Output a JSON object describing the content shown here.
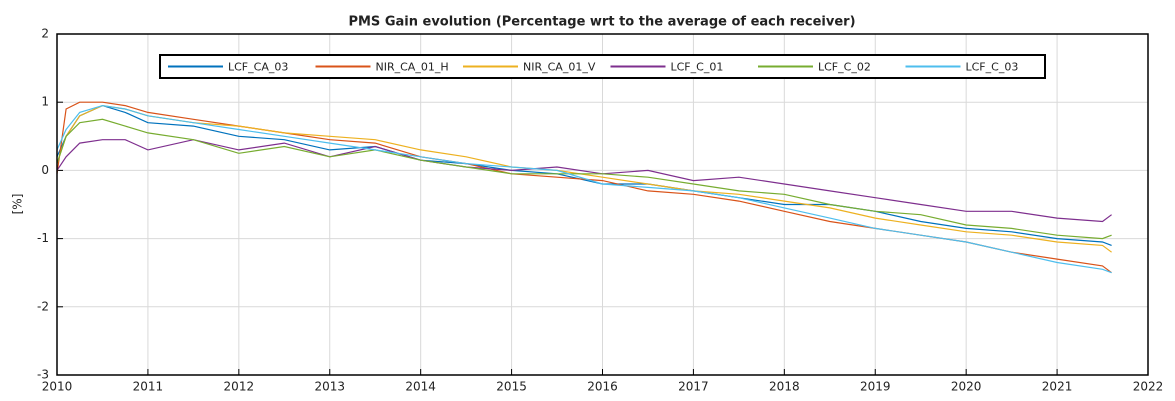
{
  "chart_data": {
    "type": "line",
    "title": "PMS Gain evolution (Percentage wrt to the average of each receiver)",
    "y_label": "[%]",
    "xlim": [
      2010,
      2022
    ],
    "xticks": [
      2010,
      2011,
      2012,
      2013,
      2014,
      2015,
      2016,
      2017,
      2018,
      2019,
      2020,
      2021,
      2022
    ],
    "ylim": [
      -3,
      2
    ],
    "yticks": [
      -3,
      -2,
      -1,
      0,
      1,
      2
    ],
    "grid": true,
    "legend": "top",
    "x": [
      2010,
      2010.1,
      2010.25,
      2010.5,
      2010.75,
      2011,
      2011.5,
      2012,
      2012.5,
      2013,
      2013.5,
      2014,
      2014.5,
      2015,
      2015.5,
      2016,
      2016.5,
      2017,
      2017.5,
      2018,
      2018.5,
      2019,
      2019.5,
      2020,
      2020.5,
      2021,
      2021.5,
      2021.6
    ],
    "series": [
      {
        "name": "LCF_CA_03",
        "color": "#0072bd",
        "values": [
          0.2,
          0.5,
          0.8,
          0.95,
          0.85,
          0.7,
          0.65,
          0.5,
          0.45,
          0.3,
          0.35,
          0.15,
          0.1,
          0.0,
          -0.05,
          -0.2,
          -0.2,
          -0.3,
          -0.4,
          -0.5,
          -0.5,
          -0.6,
          -0.75,
          -0.85,
          -0.9,
          -1.0,
          -1.05,
          -1.1
        ]
      },
      {
        "name": "NIR_CA_01_H",
        "color": "#d95319",
        "values": [
          -0.05,
          0.9,
          1.0,
          1.0,
          0.95,
          0.85,
          0.75,
          0.65,
          0.55,
          0.45,
          0.4,
          0.2,
          0.1,
          -0.05,
          -0.1,
          -0.15,
          -0.3,
          -0.35,
          -0.45,
          -0.6,
          -0.75,
          -0.85,
          -0.95,
          -1.05,
          -1.2,
          -1.3,
          -1.4,
          -1.5
        ]
      },
      {
        "name": "NIR_CA_01_V",
        "color": "#edb120",
        "values": [
          0.1,
          0.5,
          0.8,
          0.95,
          0.9,
          0.8,
          0.7,
          0.65,
          0.55,
          0.5,
          0.45,
          0.3,
          0.2,
          0.05,
          0.0,
          -0.1,
          -0.2,
          -0.3,
          -0.35,
          -0.45,
          -0.55,
          -0.7,
          -0.8,
          -0.9,
          -0.95,
          -1.05,
          -1.1,
          -1.2
        ]
      },
      {
        "name": "LCF_C_01",
        "color": "#7e2f8e",
        "values": [
          0.0,
          0.2,
          0.4,
          0.45,
          0.45,
          0.3,
          0.45,
          0.3,
          0.4,
          0.2,
          0.35,
          0.15,
          0.05,
          0.0,
          0.05,
          -0.05,
          0.0,
          -0.15,
          -0.1,
          -0.2,
          -0.3,
          -0.4,
          -0.5,
          -0.6,
          -0.6,
          -0.7,
          -0.75,
          -0.65
        ]
      },
      {
        "name": "LCF_C_02",
        "color": "#77ac30",
        "values": [
          0.1,
          0.5,
          0.7,
          0.75,
          0.65,
          0.55,
          0.45,
          0.25,
          0.35,
          0.2,
          0.3,
          0.15,
          0.05,
          -0.05,
          -0.05,
          -0.05,
          -0.1,
          -0.2,
          -0.3,
          -0.35,
          -0.5,
          -0.6,
          -0.65,
          -0.8,
          -0.85,
          -0.95,
          -1.0,
          -0.95
        ]
      },
      {
        "name": "LCF_C_03",
        "color": "#4dbeee",
        "values": [
          0.3,
          0.6,
          0.85,
          0.95,
          0.9,
          0.8,
          0.7,
          0.6,
          0.5,
          0.4,
          0.3,
          0.2,
          0.1,
          0.05,
          0.0,
          -0.2,
          -0.25,
          -0.3,
          -0.4,
          -0.55,
          -0.7,
          -0.85,
          -0.95,
          -1.05,
          -1.2,
          -1.35,
          -1.45,
          -1.5
        ]
      }
    ]
  }
}
